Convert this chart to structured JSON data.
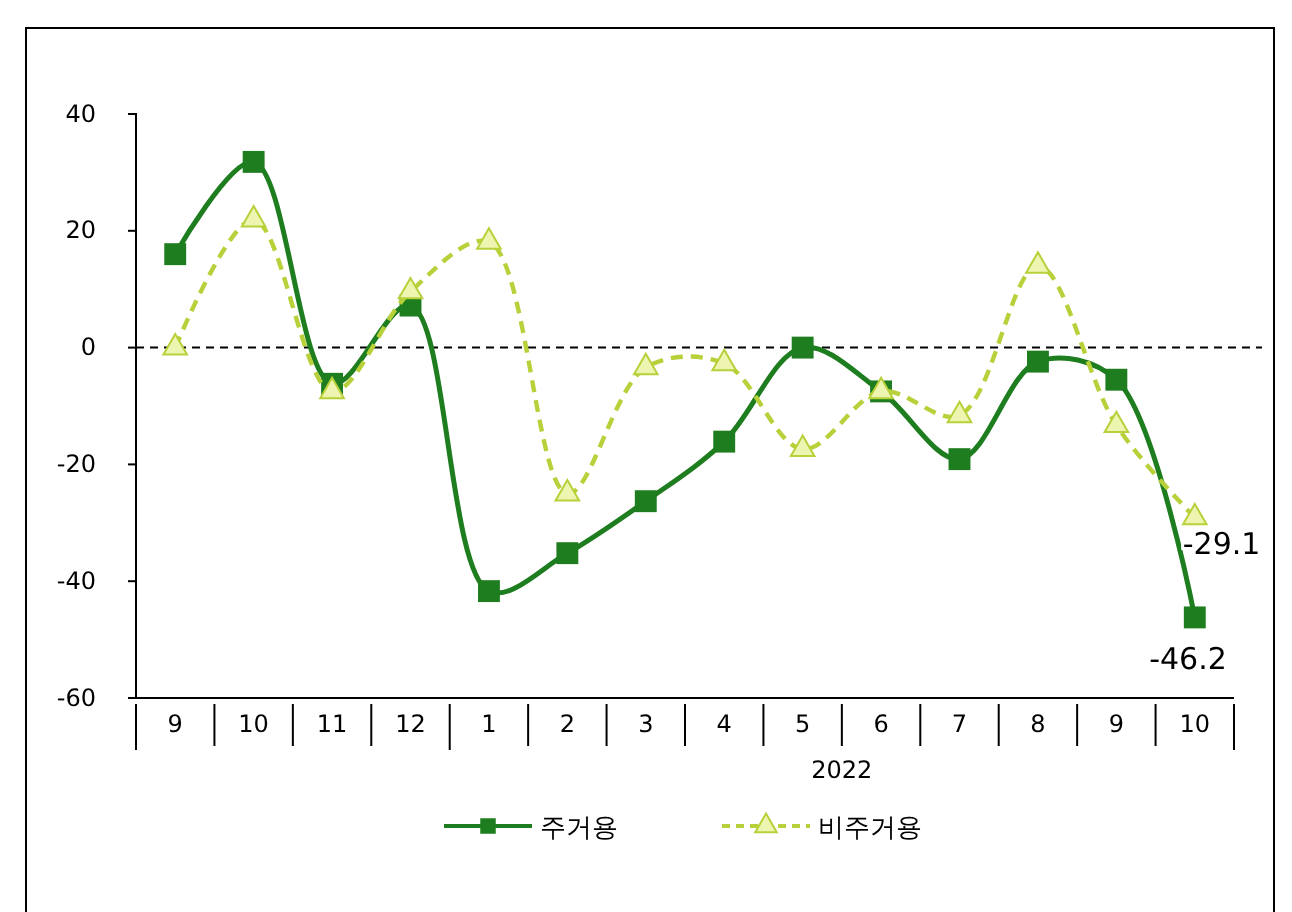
{
  "chart_data": {
    "type": "line",
    "categories": [
      "9",
      "10",
      "11",
      "12",
      "1",
      "2",
      "3",
      "4",
      "5",
      "6",
      "7",
      "8",
      "9",
      "10"
    ],
    "series": [
      {
        "name": "주거용",
        "color": "#1e7d1e",
        "marker": "square",
        "line_style": "solid",
        "values": [
          16,
          31.8,
          -6.2,
          7.2,
          -41.7,
          -35.2,
          -26.3,
          -16.1,
          0,
          -7.5,
          -19.1,
          -2.4,
          -5.5,
          -46.2
        ],
        "value_labels": [
          null,
          null,
          null,
          null,
          null,
          null,
          null,
          null,
          null,
          null,
          null,
          null,
          null,
          "-46.2"
        ]
      },
      {
        "name": "비주거용",
        "color": "#b8d03a",
        "marker": "triangle",
        "line_style": "dashed",
        "values": [
          0,
          21.9,
          -7.5,
          9.6,
          18.1,
          -25,
          -3.4,
          -2.7,
          -17.4,
          -7.5,
          -11.6,
          14,
          -13.3,
          -29.1
        ],
        "value_labels": [
          null,
          null,
          null,
          null,
          null,
          null,
          null,
          null,
          null,
          null,
          null,
          null,
          null,
          "-29.1"
        ]
      }
    ],
    "ylim": [
      -60,
      40
    ],
    "yticks": [
      -60,
      -40,
      -20,
      0,
      20,
      40
    ],
    "ref_lines": [
      {
        "axis": "y",
        "value": 0,
        "color": "#000000",
        "line_style": "dashed"
      }
    ],
    "annotations": [
      "2022"
    ],
    "grid": false,
    "legend": "bottom"
  }
}
